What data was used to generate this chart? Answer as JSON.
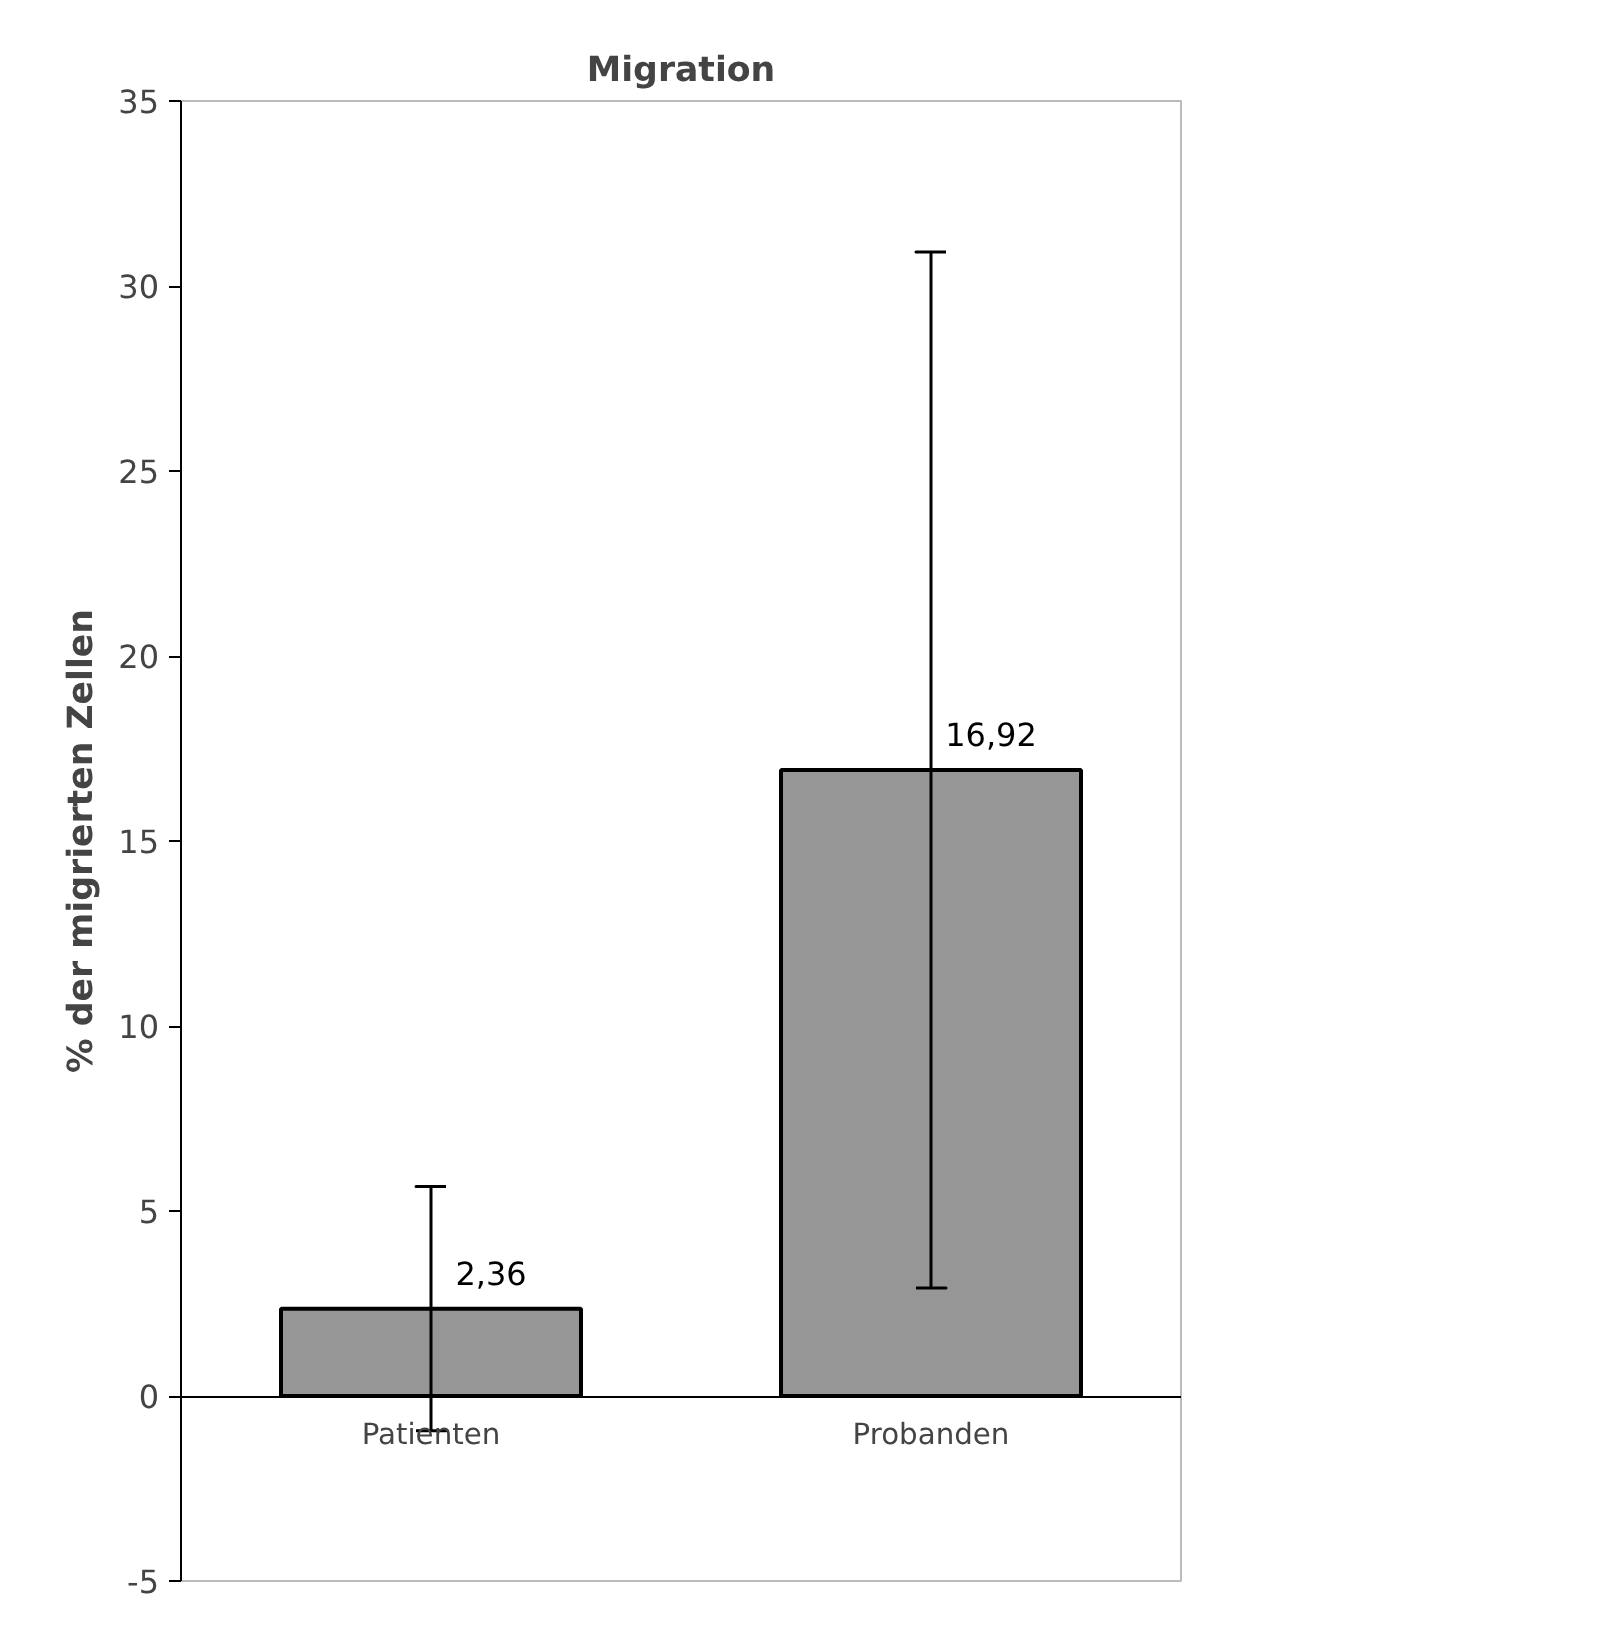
{
  "chart_data": {
    "type": "bar",
    "title": "Migration",
    "ylabel": "% der migrierten Zellen",
    "categories": [
      "Patienten",
      "Probanden"
    ],
    "values": [
      2.36,
      16.92
    ],
    "errors": [
      3.3,
      14.0
    ],
    "value_labels": [
      "2,36",
      "16,92"
    ],
    "color": "#969696",
    "ylim": [
      -5,
      35
    ],
    "yticks": [
      -5,
      0,
      5,
      10,
      15,
      20,
      25,
      30,
      35
    ],
    "grid": false
  }
}
